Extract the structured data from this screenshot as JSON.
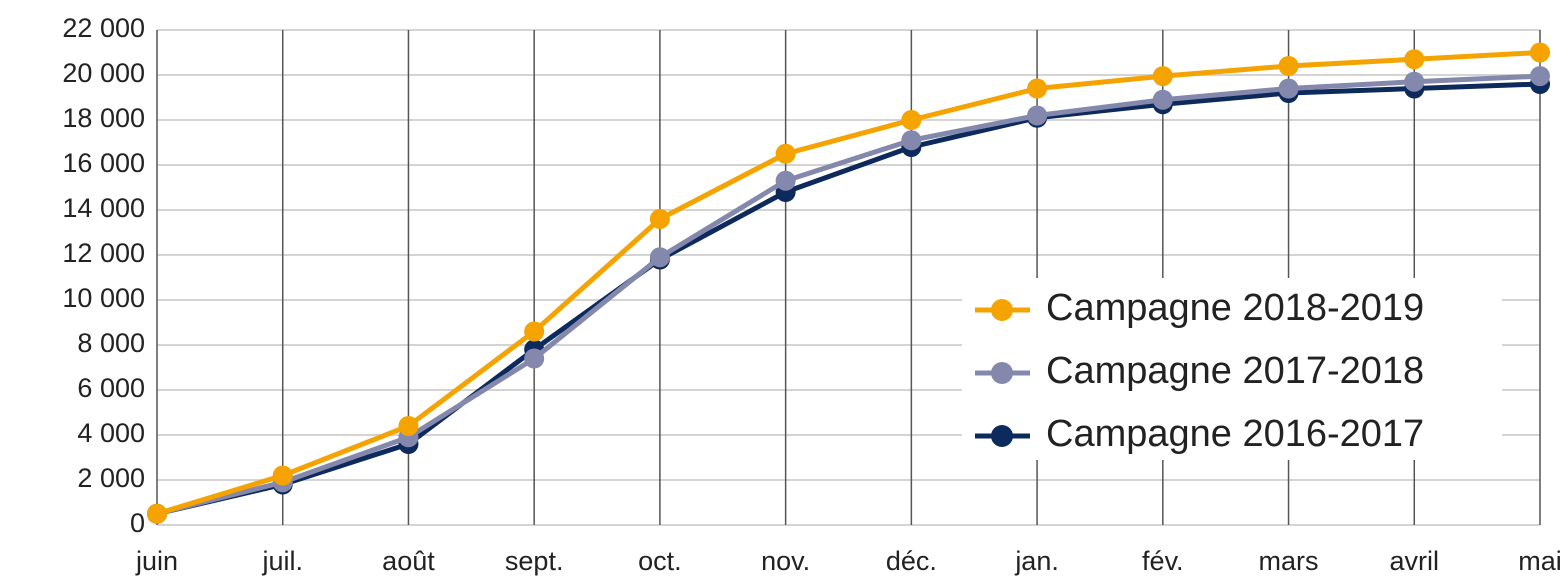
{
  "chart_data": {
    "type": "line",
    "categories": [
      "juin",
      "juil.",
      "août",
      "sept.",
      "oct.",
      "nov.",
      "déc.",
      "jan.",
      "fév.",
      "mars",
      "avril",
      "mai"
    ],
    "series": [
      {
        "name": "Campagne 2018-2019",
        "color": "#f5a300",
        "values": [
          500,
          2200,
          4400,
          8600,
          13600,
          16500,
          18000,
          19400,
          19950,
          20400,
          20700,
          21000
        ]
      },
      {
        "name": "Campagne 2017-2018",
        "color": "#8488ad",
        "values": [
          500,
          1900,
          3900,
          7400,
          11900,
          15300,
          17100,
          18200,
          18900,
          19400,
          19700,
          19950
        ]
      },
      {
        "name": "Campagne 2016-2017",
        "color": "#0c2a5b",
        "values": [
          500,
          1800,
          3600,
          7800,
          11800,
          14800,
          16800,
          18100,
          18700,
          19200,
          19400,
          19600
        ]
      }
    ],
    "ylim": [
      0,
      22000
    ],
    "yticks": [
      0,
      {
        "value": 2000,
        "label": "2 000"
      },
      {
        "value": 4000,
        "label": "4 000"
      },
      {
        "value": 6000,
        "label": "6 000"
      },
      {
        "value": 8000,
        "label": "8 000"
      },
      {
        "value": 10000,
        "label": "10 000"
      },
      {
        "value": 12000,
        "label": "12 000"
      },
      {
        "value": 14000,
        "label": "14 000"
      },
      {
        "value": 16000,
        "label": "16 000"
      },
      {
        "value": 18000,
        "label": "18 000"
      },
      {
        "value": 20000,
        "label": "20 000"
      },
      {
        "value": 22000,
        "label": "22 000"
      }
    ],
    "grid": true,
    "legend": "lower right"
  }
}
